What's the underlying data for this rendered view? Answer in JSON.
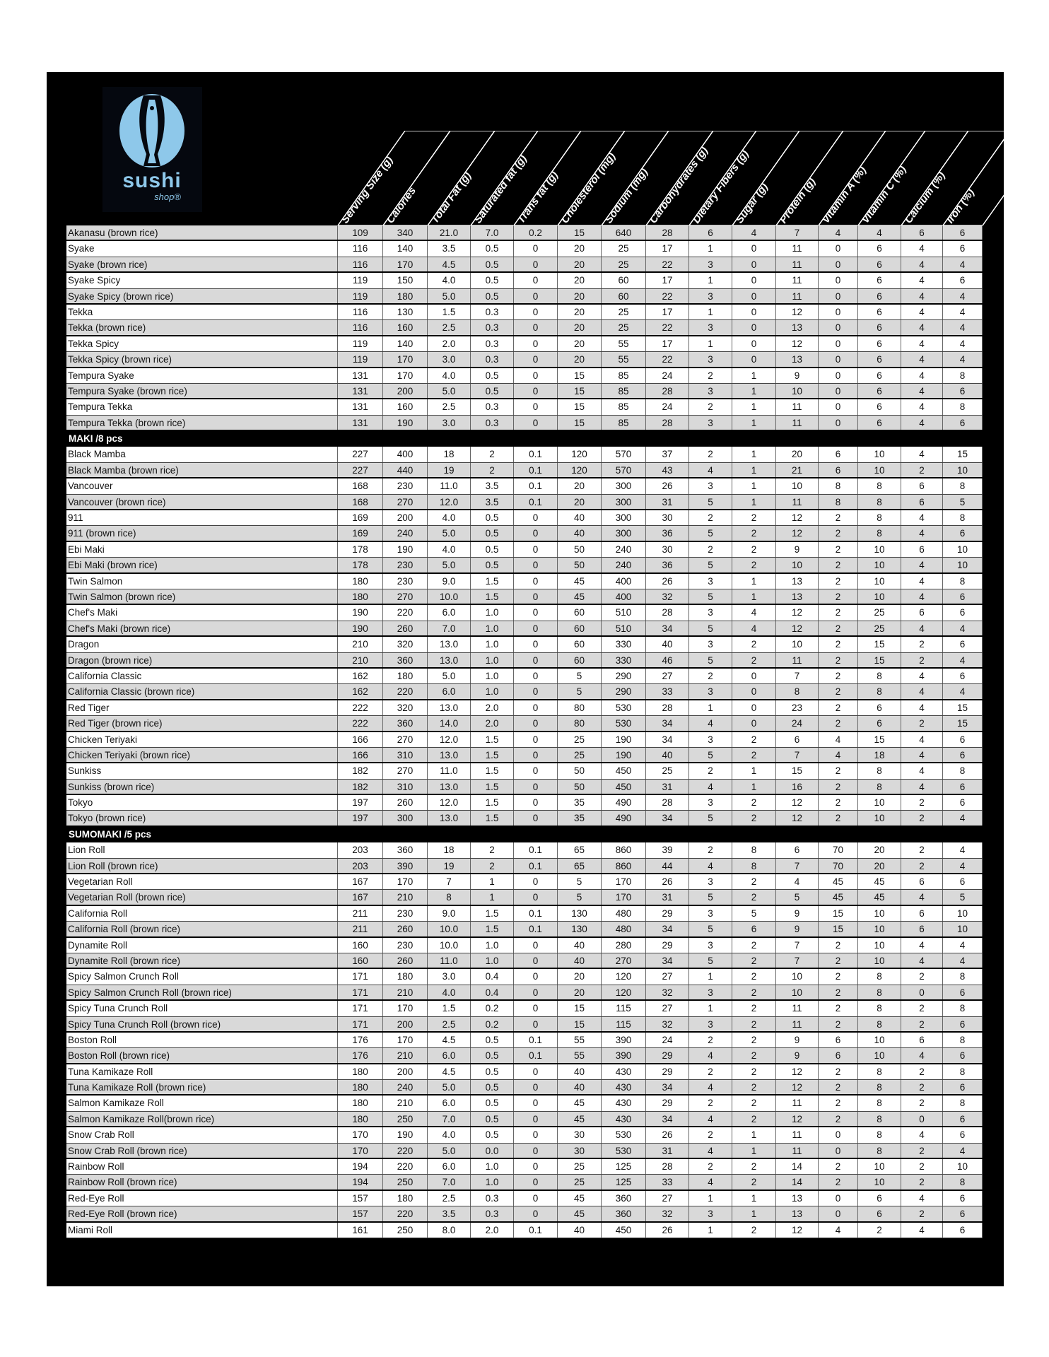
{
  "logo": {
    "brand": "sushi",
    "sub": "shop®",
    "color": "#8ec8ea"
  },
  "columns": [
    "Serving Size (g)",
    "Calories",
    "Total Fat (g)",
    "Saturated fat (g)",
    "Trans fat (g)",
    "Cholesterol (mg)",
    "Sodium (mg)",
    "Carbohydrates (g)",
    "Dietary Fibers (g)",
    "Sugar (g)",
    "Protein (g)",
    "Vitamin A (%)",
    "Vitamin C (%)",
    "Calcium (%)",
    "Iron (%)"
  ],
  "sections": [
    {
      "title": "",
      "rows": [
        [
          "Akanasu (brown rice)",
          "109",
          "340",
          "21.0",
          "7.0",
          "0.2",
          "15",
          "640",
          "28",
          "6",
          "4",
          "7",
          "4",
          "4",
          "6",
          "6"
        ],
        [
          "Syake",
          "116",
          "140",
          "3.5",
          "0.5",
          "0",
          "20",
          "25",
          "17",
          "1",
          "0",
          "11",
          "0",
          "6",
          "4",
          "6"
        ],
        [
          "Syake (brown rice)",
          "116",
          "170",
          "4.5",
          "0.5",
          "0",
          "20",
          "25",
          "22",
          "3",
          "0",
          "11",
          "0",
          "6",
          "4",
          "4"
        ],
        [
          "Syake Spicy",
          "119",
          "150",
          "4.0",
          "0.5",
          "0",
          "20",
          "60",
          "17",
          "1",
          "0",
          "11",
          "0",
          "6",
          "4",
          "6"
        ],
        [
          "Syake Spicy (brown rice)",
          "119",
          "180",
          "5.0",
          "0.5",
          "0",
          "20",
          "60",
          "22",
          "3",
          "0",
          "11",
          "0",
          "6",
          "4",
          "4"
        ],
        [
          "Tekka",
          "116",
          "130",
          "1.5",
          "0.3",
          "0",
          "20",
          "25",
          "17",
          "1",
          "0",
          "12",
          "0",
          "6",
          "4",
          "4"
        ],
        [
          "Tekka (brown rice)",
          "116",
          "160",
          "2.5",
          "0.3",
          "0",
          "20",
          "25",
          "22",
          "3",
          "0",
          "13",
          "0",
          "6",
          "4",
          "4"
        ],
        [
          "Tekka Spicy",
          "119",
          "140",
          "2.0",
          "0.3",
          "0",
          "20",
          "55",
          "17",
          "1",
          "0",
          "12",
          "0",
          "6",
          "4",
          "4"
        ],
        [
          "Tekka Spicy (brown rice)",
          "119",
          "170",
          "3.0",
          "0.3",
          "0",
          "20",
          "55",
          "22",
          "3",
          "0",
          "13",
          "0",
          "6",
          "4",
          "4"
        ],
        [
          "Tempura Syake",
          "131",
          "170",
          "4.0",
          "0.5",
          "0",
          "15",
          "85",
          "24",
          "2",
          "1",
          "9",
          "0",
          "6",
          "4",
          "8"
        ],
        [
          "Tempura Syake  (brown rice)",
          "131",
          "200",
          "5.0",
          "0.5",
          "0",
          "15",
          "85",
          "28",
          "3",
          "1",
          "10",
          "0",
          "6",
          "4",
          "6"
        ],
        [
          "Tempura Tekka",
          "131",
          "160",
          "2.5",
          "0.3",
          "0",
          "15",
          "85",
          "24",
          "2",
          "1",
          "11",
          "0",
          "6",
          "4",
          "8"
        ],
        [
          "Tempura Tekka  (brown rice)",
          "131",
          "190",
          "3.0",
          "0.3",
          "0",
          "15",
          "85",
          "28",
          "3",
          "1",
          "11",
          "0",
          "6",
          "4",
          "6"
        ]
      ]
    },
    {
      "title": "MAKI /8 pcs",
      "rows": [
        [
          "Black Mamba",
          "227",
          "400",
          "18",
          "2",
          "0.1",
          "120",
          "570",
          "37",
          "2",
          "1",
          "20",
          "6",
          "10",
          "4",
          "15"
        ],
        [
          "Black Mamba (brown rice)",
          "227",
          "440",
          "19",
          "2",
          "0.1",
          "120",
          "570",
          "43",
          "4",
          "1",
          "21",
          "6",
          "10",
          "2",
          "10"
        ],
        [
          "Vancouver",
          "168",
          "230",
          "11.0",
          "3.5",
          "0.1",
          "20",
          "300",
          "26",
          "3",
          "1",
          "10",
          "8",
          "8",
          "6",
          "8"
        ],
        [
          "Vancouver (brown rice)",
          "168",
          "270",
          "12.0",
          "3.5",
          "0.1",
          "20",
          "300",
          "31",
          "5",
          "1",
          "11",
          "8",
          "8",
          "6",
          "5"
        ],
        [
          "911",
          "169",
          "200",
          "4.0",
          "0.5",
          "0",
          "40",
          "300",
          "30",
          "2",
          "2",
          "12",
          "2",
          "8",
          "4",
          "8"
        ],
        [
          "911 (brown rice)",
          "169",
          "240",
          "5.0",
          "0.5",
          "0",
          "40",
          "300",
          "36",
          "5",
          "2",
          "12",
          "2",
          "8",
          "4",
          "6"
        ],
        [
          "Ebi Maki",
          "178",
          "190",
          "4.0",
          "0.5",
          "0",
          "50",
          "240",
          "30",
          "2",
          "2",
          "9",
          "2",
          "10",
          "6",
          "10"
        ],
        [
          "Ebi Maki (brown rice)",
          "178",
          "230",
          "5.0",
          "0.5",
          "0",
          "50",
          "240",
          "36",
          "5",
          "2",
          "10",
          "2",
          "10",
          "4",
          "10"
        ],
        [
          "Twin Salmon",
          "180",
          "230",
          "9.0",
          "1.5",
          "0",
          "45",
          "400",
          "26",
          "3",
          "1",
          "13",
          "2",
          "10",
          "4",
          "8"
        ],
        [
          "Twin Salmon (brown rice)",
          "180",
          "270",
          "10.0",
          "1.5",
          "0",
          "45",
          "400",
          "32",
          "5",
          "1",
          "13",
          "2",
          "10",
          "4",
          "6"
        ],
        [
          "Chef's Maki",
          "190",
          "220",
          "6.0",
          "1.0",
          "0",
          "60",
          "510",
          "28",
          "3",
          "4",
          "12",
          "2",
          "25",
          "6",
          "6"
        ],
        [
          "Chef's Maki (brown rice)",
          "190",
          "260",
          "7.0",
          "1.0",
          "0",
          "60",
          "510",
          "34",
          "5",
          "4",
          "12",
          "2",
          "25",
          "4",
          "4"
        ],
        [
          "Dragon",
          "210",
          "320",
          "13.0",
          "1.0",
          "0",
          "60",
          "330",
          "40",
          "3",
          "2",
          "10",
          "2",
          "15",
          "2",
          "6"
        ],
        [
          "Dragon (brown rice)",
          "210",
          "360",
          "13.0",
          "1.0",
          "0",
          "60",
          "330",
          "46",
          "5",
          "2",
          "11",
          "2",
          "15",
          "2",
          "4"
        ],
        [
          "California Classic",
          "162",
          "180",
          "5.0",
          "1.0",
          "0",
          "5",
          "290",
          "27",
          "2",
          "0",
          "7",
          "2",
          "8",
          "4",
          "6"
        ],
        [
          "California Classic (brown rice)",
          "162",
          "220",
          "6.0",
          "1.0",
          "0",
          "5",
          "290",
          "33",
          "3",
          "0",
          "8",
          "2",
          "8",
          "4",
          "4"
        ],
        [
          "Red Tiger",
          "222",
          "320",
          "13.0",
          "2.0",
          "0",
          "80",
          "530",
          "28",
          "1",
          "0",
          "23",
          "2",
          "6",
          "4",
          "15"
        ],
        [
          "Red Tiger (brown rice)",
          "222",
          "360",
          "14.0",
          "2.0",
          "0",
          "80",
          "530",
          "34",
          "4",
          "0",
          "24",
          "2",
          "6",
          "2",
          "15"
        ],
        [
          "Chicken Teriyaki",
          "166",
          "270",
          "12.0",
          "1.5",
          "0",
          "25",
          "190",
          "34",
          "3",
          "2",
          "6",
          "4",
          "15",
          "4",
          "6"
        ],
        [
          "Chicken Teriyaki (brown rice)",
          "166",
          "310",
          "13.0",
          "1.5",
          "0",
          "25",
          "190",
          "40",
          "5",
          "2",
          "7",
          "4",
          "18",
          "4",
          "6"
        ],
        [
          "Sunkiss",
          "182",
          "270",
          "11.0",
          "1.5",
          "0",
          "50",
          "450",
          "25",
          "2",
          "1",
          "15",
          "2",
          "8",
          "4",
          "8"
        ],
        [
          "Sunkiss (brown rice)",
          "182",
          "310",
          "13.0",
          "1.5",
          "0",
          "50",
          "450",
          "31",
          "4",
          "1",
          "16",
          "2",
          "8",
          "4",
          "6"
        ],
        [
          "Tokyo",
          "197",
          "260",
          "12.0",
          "1.5",
          "0",
          "35",
          "490",
          "28",
          "3",
          "2",
          "12",
          "2",
          "10",
          "2",
          "6"
        ],
        [
          "Tokyo (brown rice)",
          "197",
          "300",
          "13.0",
          "1.5",
          "0",
          "35",
          "490",
          "34",
          "5",
          "2",
          "12",
          "2",
          "10",
          "2",
          "4"
        ]
      ]
    },
    {
      "title": "SUMOMAKI /5 pcs",
      "rows": [
        [
          "Lion Roll",
          "203",
          "360",
          "18",
          "2",
          "0.1",
          "65",
          "860",
          "39",
          "2",
          "8",
          "6",
          "70",
          "20",
          "2",
          "4"
        ],
        [
          "Lion Roll (brown rice)",
          "203",
          "390",
          "19",
          "2",
          "0.1",
          "65",
          "860",
          "44",
          "4",
          "8",
          "7",
          "70",
          "20",
          "2",
          "4"
        ],
        [
          "Vegetarian Roll",
          "167",
          "170",
          "7",
          "1",
          "0",
          "5",
          "170",
          "26",
          "3",
          "2",
          "4",
          "45",
          "45",
          "6",
          "6"
        ],
        [
          "Vegetarian Roll (brown rice)",
          "167",
          "210",
          "8",
          "1",
          "0",
          "5",
          "170",
          "31",
          "5",
          "2",
          "5",
          "45",
          "45",
          "4",
          "5"
        ],
        [
          "California Roll",
          "211",
          "230",
          "9.0",
          "1.5",
          "0.1",
          "130",
          "480",
          "29",
          "3",
          "5",
          "9",
          "15",
          "10",
          "6",
          "10"
        ],
        [
          "California Roll (brown rice)",
          "211",
          "260",
          "10.0",
          "1.5",
          "0.1",
          "130",
          "480",
          "34",
          "5",
          "6",
          "9",
          "15",
          "10",
          "6",
          "10"
        ],
        [
          "Dynamite Roll",
          "160",
          "230",
          "10.0",
          "1.0",
          "0",
          "40",
          "280",
          "29",
          "3",
          "2",
          "7",
          "2",
          "10",
          "4",
          "4"
        ],
        [
          "Dynamite Roll (brown rice)",
          "160",
          "260",
          "11.0",
          "1.0",
          "0",
          "40",
          "270",
          "34",
          "5",
          "2",
          "7",
          "2",
          "10",
          "4",
          "4"
        ],
        [
          "Spicy Salmon Crunch Roll",
          "171",
          "180",
          "3.0",
          "0.4",
          "0",
          "20",
          "120",
          "27",
          "1",
          "2",
          "10",
          "2",
          "8",
          "2",
          "8"
        ],
        [
          "Spicy Salmon Crunch Roll (brown rice)",
          "171",
          "210",
          "4.0",
          "0.4",
          "0",
          "20",
          "120",
          "32",
          "3",
          "2",
          "10",
          "2",
          "8",
          "0",
          "6"
        ],
        [
          "Spicy Tuna Crunch Roll",
          "171",
          "170",
          "1.5",
          "0.2",
          "0",
          "15",
          "115",
          "27",
          "1",
          "2",
          "11",
          "2",
          "8",
          "2",
          "8"
        ],
        [
          "Spicy Tuna Crunch Roll (brown rice)",
          "171",
          "200",
          "2.5",
          "0.2",
          "0",
          "15",
          "115",
          "32",
          "3",
          "2",
          "11",
          "2",
          "8",
          "2",
          "6"
        ],
        [
          "Boston Roll",
          "176",
          "170",
          "4.5",
          "0.5",
          "0.1",
          "55",
          "390",
          "24",
          "2",
          "2",
          "9",
          "6",
          "10",
          "6",
          "8"
        ],
        [
          "Boston Roll (brown rice)",
          "176",
          "210",
          "6.0",
          "0.5",
          "0.1",
          "55",
          "390",
          "29",
          "4",
          "2",
          "9",
          "6",
          "10",
          "4",
          "6"
        ],
        [
          "Tuna Kamikaze  Roll",
          "180",
          "200",
          "4.5",
          "0.5",
          "0",
          "40",
          "430",
          "29",
          "2",
          "2",
          "12",
          "2",
          "8",
          "2",
          "8"
        ],
        [
          "Tuna Kamikaze  Roll (brown rice)",
          "180",
          "240",
          "5.0",
          "0.5",
          "0",
          "40",
          "430",
          "34",
          "4",
          "2",
          "12",
          "2",
          "8",
          "2",
          "6"
        ],
        [
          "Salmon Kamikaze  Roll",
          "180",
          "210",
          "6.0",
          "0.5",
          "0",
          "45",
          "430",
          "29",
          "2",
          "2",
          "11",
          "2",
          "8",
          "2",
          "8"
        ],
        [
          "Salmon Kamikaze Roll(brown rice)",
          "180",
          "250",
          "7.0",
          "0.5",
          "0",
          "45",
          "430",
          "34",
          "4",
          "2",
          "12",
          "2",
          "8",
          "0",
          "6"
        ],
        [
          "Snow Crab Roll",
          "170",
          "190",
          "4.0",
          "0.5",
          "0",
          "30",
          "530",
          "26",
          "2",
          "1",
          "11",
          "0",
          "8",
          "4",
          "6"
        ],
        [
          "Snow Crab Roll (brown rice)",
          "170",
          "220",
          "5.0",
          "0.0",
          "0",
          "30",
          "530",
          "31",
          "4",
          "1",
          "11",
          "0",
          "8",
          "2",
          "4"
        ],
        [
          "Rainbow Roll",
          "194",
          "220",
          "6.0",
          "1.0",
          "0",
          "25",
          "125",
          "28",
          "2",
          "2",
          "14",
          "2",
          "10",
          "2",
          "10"
        ],
        [
          "Rainbow Roll (brown rice)",
          "194",
          "250",
          "7.0",
          "1.0",
          "0",
          "25",
          "125",
          "33",
          "4",
          "2",
          "14",
          "2",
          "10",
          "2",
          "8"
        ],
        [
          "Red-Eye Roll",
          "157",
          "180",
          "2.5",
          "0.3",
          "0",
          "45",
          "360",
          "27",
          "1",
          "1",
          "13",
          "0",
          "6",
          "4",
          "6"
        ],
        [
          "Red-Eye Roll (brown rice)",
          "157",
          "220",
          "3.5",
          "0.3",
          "0",
          "45",
          "360",
          "32",
          "3",
          "1",
          "13",
          "0",
          "6",
          "2",
          "6"
        ],
        [
          "Miami Roll",
          "161",
          "250",
          "8.0",
          "2.0",
          "0.1",
          "40",
          "450",
          "26",
          "1",
          "2",
          "12",
          "4",
          "2",
          "4",
          "6"
        ]
      ]
    }
  ]
}
